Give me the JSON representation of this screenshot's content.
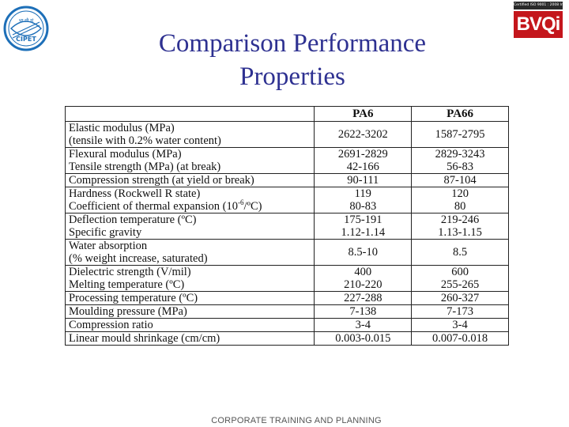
{
  "header": {
    "logo_left_text_top": "भा.प्रौ.सं",
    "logo_left_text_bottom": "CIPET",
    "cert_text": "Certified ISO 9001 : 2008 Inc",
    "brand_text": "BVQi",
    "colors": {
      "title": "#2e3191",
      "brand": "#c4161c",
      "logo": "#1d6fb8"
    }
  },
  "title_line1": "Comparison Performance",
  "title_line2": "Properties",
  "table": {
    "headers": [
      "",
      "PA6",
      "PA66"
    ],
    "rows": [
      {
        "prop": [
          "Elastic modulus (MPa)",
          "(tensile with 0.2% water content)"
        ],
        "pa6": "2622-3202",
        "pa66": "1587-2795"
      },
      {
        "prop": [
          "Flexural modulus (MPa)",
          "Tensile strength (MPa) (at break)"
        ],
        "pa6": [
          "2691-2829",
          "42-166"
        ],
        "pa66": [
          "2829-3243",
          "56-83"
        ]
      },
      {
        "prop": [
          "Compression strength (at yield or break)"
        ],
        "pa6": "90-111",
        "pa66": "87-104"
      },
      {
        "prop": [
          "Hardness (Rockwell R state)",
          "Coefficient of thermal expansion (10-6/ºC)"
        ],
        "pa6": [
          "119",
          "80-83"
        ],
        "pa66": [
          "120",
          "80"
        ]
      },
      {
        "prop": [
          "Deflection temperature (ºC)",
          "Specific gravity"
        ],
        "pa6": [
          "175-191",
          "1.12-1.14"
        ],
        "pa66": [
          "219-246",
          "1.13-1.15"
        ]
      },
      {
        "prop": [
          "Water absorption",
          "(% weight increase, saturated)"
        ],
        "pa6": "8.5-10",
        "pa66": "8.5"
      },
      {
        "prop": [
          "Dielectric strength (V/mil)",
          "Melting temperature (ºC)"
        ],
        "pa6": [
          "400",
          "210-220"
        ],
        "pa66": [
          "600",
          "255-265"
        ]
      },
      {
        "prop": [
          "Processing temperature (ºC)"
        ],
        "pa6": "227-288",
        "pa66": "260-327"
      },
      {
        "prop": [
          "Moulding pressure (MPa)"
        ],
        "pa6": "7-138",
        "pa66": "7-173"
      },
      {
        "prop": [
          "Compression ratio"
        ],
        "pa6": "3-4",
        "pa66": "3-4"
      },
      {
        "prop": [
          "Linear mould shrinkage (cm/cm)"
        ],
        "pa6": "0.003-0.015",
        "pa66": "0.007-0.018"
      }
    ]
  },
  "footer": "CORPORATE TRAINING AND PLANNING"
}
